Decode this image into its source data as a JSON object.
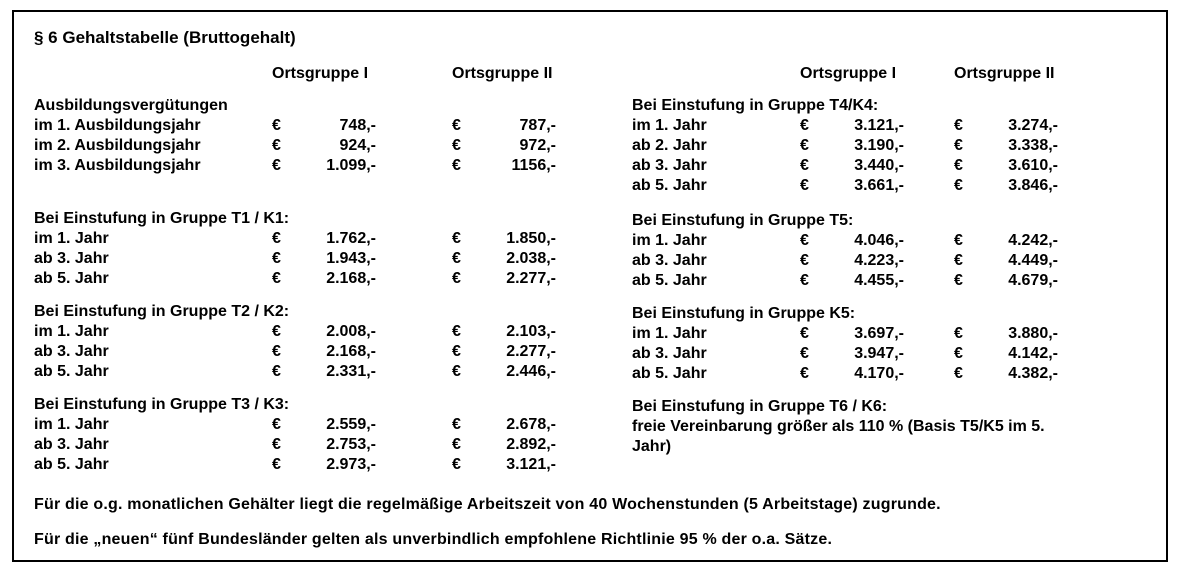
{
  "page": {
    "title": "§ 6 Gehaltstabelle (Bruttogehalt)"
  },
  "colors": {
    "text": "#000000",
    "border": "#000000",
    "background": "#ffffff"
  },
  "table": {
    "currency_symbol": "€",
    "col_headers": [
      "Ortsgruppe I",
      "Ortsgruppe II"
    ],
    "columns": [
      {
        "sections": [
          {
            "heading": "Ausbildungsvergütungen",
            "rows": [
              {
                "label": "im 1. Ausbildungsjahr",
                "og1": "748,-",
                "og2": "787,-"
              },
              {
                "label": "im 2. Ausbildungsjahr",
                "og1": "924,-",
                "og2": "972,-"
              },
              {
                "label": "im 3. Ausbildungsjahr",
                "og1": "1.099,-",
                "og2": "1156,-"
              }
            ]
          },
          {
            "heading": "Bei Einstufung in Gruppe T1 / K1:",
            "rows": [
              {
                "label": "im 1. Jahr",
                "og1": "1.762,-",
                "og2": "1.850,-"
              },
              {
                "label": "ab 3. Jahr",
                "og1": "1.943,-",
                "og2": "2.038,-"
              },
              {
                "label": "ab 5. Jahr",
                "og1": "2.168,-",
                "og2": "2.277,-"
              }
            ]
          },
          {
            "heading": "Bei Einstufung in Gruppe T2 / K2:",
            "rows": [
              {
                "label": "im 1. Jahr",
                "og1": "2.008,-",
                "og2": "2.103,-"
              },
              {
                "label": "ab 3. Jahr",
                "og1": "2.168,-",
                "og2": "2.277,-"
              },
              {
                "label": "ab 5. Jahr",
                "og1": "2.331,-",
                "og2": "2.446,-"
              }
            ]
          },
          {
            "heading": "Bei Einstufung in Gruppe T3 / K3:",
            "rows": [
              {
                "label": "im 1. Jahr",
                "og1": "2.559,-",
                "og2": "2.678,-"
              },
              {
                "label": "ab 3. Jahr",
                "og1": "2.753,-",
                "og2": "2.892,-"
              },
              {
                "label": "ab 5. Jahr",
                "og1": "2.973,-",
                "og2": "3.121,-"
              }
            ]
          }
        ]
      },
      {
        "sections": [
          {
            "heading": "Bei Einstufung in Gruppe T4/K4:",
            "rows": [
              {
                "label": "im 1. Jahr",
                "og1": "3.121,-",
                "og2": "3.274,-"
              },
              {
                "label": "ab 2. Jahr",
                "og1": "3.190,-",
                "og2": "3.338,-"
              },
              {
                "label": "ab 3. Jahr",
                "og1": "3.440,-",
                "og2": "3.610,-"
              },
              {
                "label": "ab 5. Jahr",
                "og1": "3.661,-",
                "og2": "3.846,-"
              }
            ]
          },
          {
            "heading": "Bei Einstufung in Gruppe T5:",
            "rows": [
              {
                "label": "im 1. Jahr",
                "og1": "4.046,-",
                "og2": "4.242,-"
              },
              {
                "label": "ab 3. Jahr",
                "og1": "4.223,-",
                "og2": "4.449,-"
              },
              {
                "label": "ab 5. Jahr",
                "og1": "4.455,-",
                "og2": "4.679,-"
              }
            ]
          },
          {
            "heading": "Bei Einstufung in Gruppe K5:",
            "rows": [
              {
                "label": "im 1. Jahr",
                "og1": "3.697,-",
                "og2": "3.880,-"
              },
              {
                "label": "ab 3. Jahr",
                "og1": "3.947,-",
                "og2": "4.142,-"
              },
              {
                "label": "ab 5. Jahr",
                "og1": "4.170,-",
                "og2": "4.382,-"
              }
            ]
          },
          {
            "heading": "Bei Einstufung in Gruppe T6 / K6:",
            "note": "freie Vereinbarung größer als 110 % (Basis T5/K5 im 5. Jahr)"
          }
        ]
      }
    ]
  },
  "footer": {
    "line1": "Für die o.g. monatlichen Gehälter liegt die regelmäßige Arbeitszeit von 40 Wochenstunden (5 Arbeitstage) zugrunde.",
    "line2": "Für die „neuen“ fünf Bundesländer gelten als unverbindlich empfohlene Richtlinie 95 % der o.a. Sätze."
  }
}
